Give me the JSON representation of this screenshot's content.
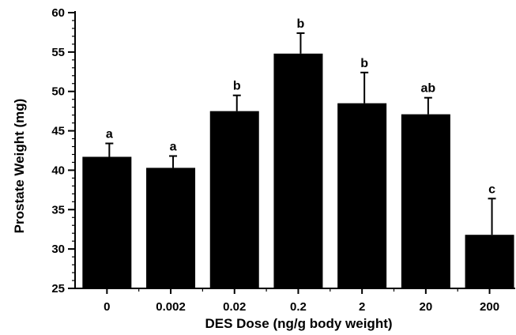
{
  "chart_data": {
    "type": "bar",
    "title": "",
    "xlabel": "DES Dose (ng/g body weight)",
    "ylabel": "Prostate Weight (mg)",
    "categories": [
      "0",
      "0.002",
      "0.02",
      "0.2",
      "2",
      "20",
      "200"
    ],
    "values": [
      41.7,
      40.3,
      47.5,
      54.8,
      48.5,
      47.1,
      31.8
    ],
    "error_upper": [
      43.4,
      41.8,
      49.5,
      57.4,
      52.4,
      49.2,
      36.4
    ],
    "group_labels": [
      "a",
      "a",
      "b",
      "b",
      "b",
      "ab",
      "c"
    ],
    "ylim": [
      25,
      60
    ],
    "yticks": [
      25,
      30,
      35,
      40,
      45,
      50,
      55,
      60
    ],
    "grid": false,
    "bar_color": "#000000"
  }
}
